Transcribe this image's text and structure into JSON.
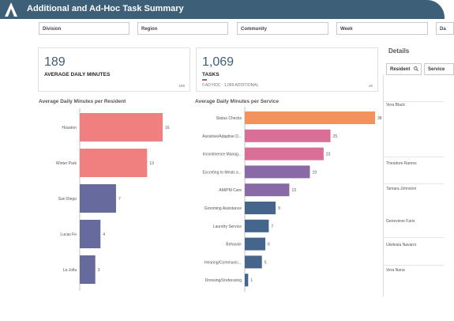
{
  "header": {
    "title": "Additional and Ad-Hoc Task Summary"
  },
  "filters": {
    "division": "Division",
    "region": "Region",
    "community": "Community",
    "week": "Week",
    "day": "Da"
  },
  "kpi_minutes": {
    "value": "189",
    "label": "AVERAGE DAILY MINUTES",
    "corner": "189"
  },
  "kpi_tasks": {
    "value": "1,069",
    "label": "TASKS",
    "sub": "0 AD HOC · 1,069 ADDITIONAL",
    "corner": "45"
  },
  "resident_chart": {
    "title": "Average Daily Minutes per Resident",
    "chart_data": {
      "type": "bar",
      "orientation": "horizontal",
      "categories": [
        "Houston",
        "Winter Park",
        "San Diego",
        "Lucas Fe",
        "La Jolla"
      ],
      "values": [
        16,
        13,
        7,
        4,
        3
      ],
      "colors": [
        "#f08080",
        "#f08080",
        "#666a9c",
        "#666a9c",
        "#666a9c"
      ]
    }
  },
  "service_chart": {
    "title": "Average Daily Minutes per Service",
    "chart_data": {
      "type": "bar",
      "orientation": "horizontal",
      "categories": [
        "Status Checks",
        "Assistive/Adaptive D...",
        "Incontinence Manag...",
        "Escorting to Meals a...",
        "AM/PM Care",
        "Grooming Assistance",
        "Laundry Service",
        "Behavior",
        "Hearing/Communic...",
        "Dressing/Undressing"
      ],
      "values": [
        38,
        25,
        23,
        19,
        13,
        9,
        7,
        6,
        5,
        1
      ],
      "colors": [
        "#f4925f",
        "#d96e97",
        "#d96e97",
        "#8a6aa6",
        "#8a6aa6",
        "#46658a",
        "#46658a",
        "#46658a",
        "#46658a",
        "#46658a"
      ]
    }
  },
  "details": {
    "title": "Details",
    "tab_resident": "Resident",
    "tab_service": "Service",
    "names": [
      "Vera Black",
      "Theodore Ramos",
      "Tamara Johnston",
      "Genevieve Faris",
      "Ukelesia Navarro",
      "Vera Nana"
    ]
  }
}
